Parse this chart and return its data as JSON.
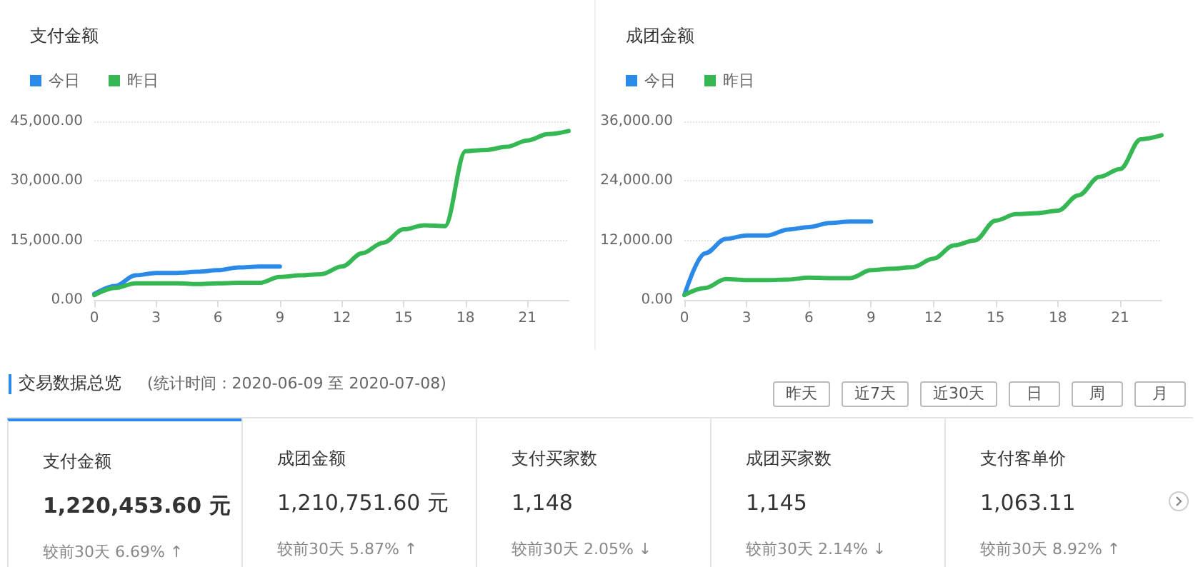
{
  "chart_data": [
    {
      "type": "line",
      "title": "支付金额",
      "legend": "top left",
      "grid": "y",
      "marker": "none",
      "line_style": "solid",
      "x": [
        0,
        1,
        2,
        3,
        4,
        5,
        6,
        7,
        8,
        9,
        10,
        11,
        12,
        13,
        14,
        15,
        16,
        17,
        18,
        19,
        20,
        21,
        22,
        23
      ],
      "xlim": [
        0,
        23
      ],
      "xticks": [
        0,
        3,
        6,
        9,
        12,
        15,
        18,
        21
      ],
      "ylim": [
        0,
        45000
      ],
      "yticks": [
        {
          "value": 0,
          "label": "0.00"
        },
        {
          "value": 15000,
          "label": "15,000.00"
        },
        {
          "value": 30000,
          "label": "30,000.00"
        },
        {
          "value": 45000,
          "label": "45,000.00"
        }
      ],
      "series": [
        {
          "name": "今日",
          "color": "#2b8ae8",
          "x": [
            0,
            1,
            2,
            3,
            4,
            5,
            6,
            7,
            8,
            9
          ],
          "values": [
            1500,
            3500,
            6200,
            6800,
            6800,
            7100,
            7500,
            8200,
            8400,
            8400
          ]
        },
        {
          "name": "昨日",
          "color": "#35b854",
          "values": [
            1200,
            3000,
            4200,
            4200,
            4200,
            4000,
            4200,
            4300,
            4300,
            5800,
            6200,
            6500,
            8400,
            11800,
            14400,
            17800,
            18800,
            18600,
            37500,
            37800,
            38600,
            40200,
            41800,
            42600
          ]
        }
      ]
    },
    {
      "type": "line",
      "title": "成团金额",
      "legend": "top left",
      "grid": "y",
      "marker": "none",
      "line_style": "solid",
      "x": [
        0,
        1,
        2,
        3,
        4,
        5,
        6,
        7,
        8,
        9,
        10,
        11,
        12,
        13,
        14,
        15,
        16,
        17,
        18,
        19,
        20,
        21,
        22,
        23
      ],
      "xlim": [
        0,
        23
      ],
      "xticks": [
        0,
        3,
        6,
        9,
        12,
        15,
        18,
        21
      ],
      "ylim": [
        0,
        36000
      ],
      "yticks": [
        {
          "value": 0,
          "label": "0.00"
        },
        {
          "value": 12000,
          "label": "12,000.00"
        },
        {
          "value": 24000,
          "label": "24,000.00"
        },
        {
          "value": 36000,
          "label": "36,000.00"
        }
      ],
      "series": [
        {
          "name": "今日",
          "color": "#2b8ae8",
          "x": [
            0,
            1,
            2,
            3,
            4,
            5,
            6,
            7,
            8,
            9
          ],
          "values": [
            1000,
            9400,
            12300,
            13000,
            13000,
            14200,
            14700,
            15500,
            15800,
            15800
          ]
        },
        {
          "name": "昨日",
          "color": "#35b854",
          "values": [
            1000,
            2400,
            4200,
            4000,
            4000,
            4100,
            4500,
            4400,
            4400,
            6000,
            6300,
            6600,
            8300,
            11000,
            12000,
            16000,
            17300,
            17500,
            18000,
            21100,
            24800,
            26400,
            32400,
            33200
          ]
        }
      ]
    },
    {
      "type": "other",
      "title": "交易数据总览",
      "subtitle": "(统计时间：2020-06-09 至 2020-07-08)",
      "annotations": [
        "昨天",
        "近7天",
        "近30天",
        "日",
        "周",
        "月",
        "支付金额",
        "1,220,453.60 元",
        "较前30天 6.69% ↑",
        "成团金额",
        "1,210,751.60 元",
        "较前30天 5.87% ↑",
        "支付买家数",
        "1,148",
        "较前30天 2.05% ↓",
        "成团买家数",
        "1,145",
        "较前30天 2.14% ↓",
        "支付客单价",
        "1,063.11",
        "较前30天 8.92% ↑"
      ]
    }
  ]
}
